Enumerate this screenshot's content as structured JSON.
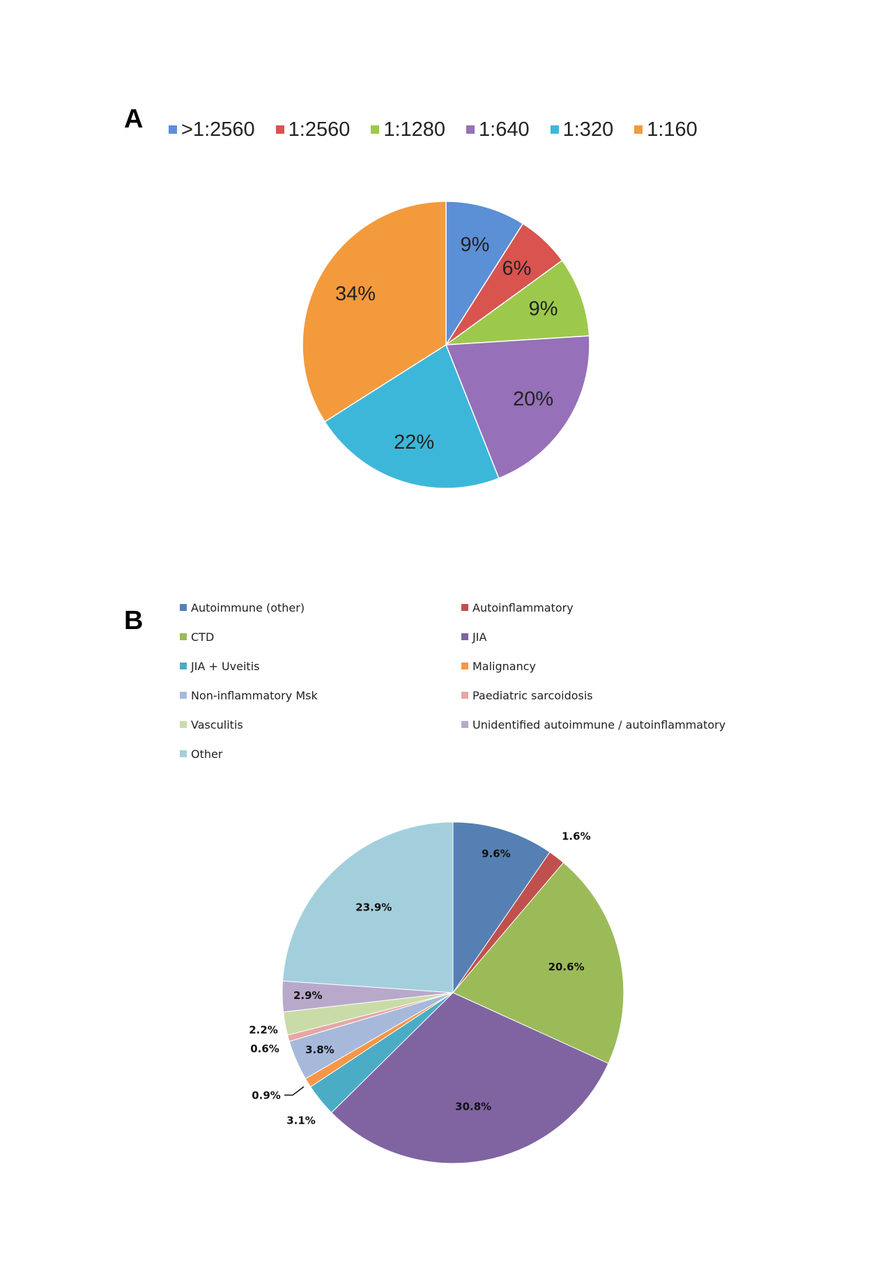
{
  "chart_data": [
    {
      "type": "pie",
      "panel": "A",
      "colors": [
        "#5B8FD6",
        "#D9534F",
        "#9CC94B",
        "#9670B8",
        "#3DB7D9",
        "#F39A3C"
      ],
      "slices": [
        {
          "name": ">1:2560",
          "value": 9,
          "label": "9%"
        },
        {
          "name": "1:2560",
          "value": 6,
          "label": "6%"
        },
        {
          "name": "1:1280",
          "value": 9,
          "label": "9%"
        },
        {
          "name": "1:640",
          "value": 20,
          "label": "20%"
        },
        {
          "name": "1:320",
          "value": 22,
          "label": "22%"
        },
        {
          "name": "1:160",
          "value": 34,
          "label": "34%"
        }
      ]
    },
    {
      "type": "pie",
      "panel": "B",
      "slices": [
        {
          "name": "Autoimmune (other)",
          "value": 9.6,
          "label": "9.6%",
          "color": "#5680B4"
        },
        {
          "name": "Autoinflammatory",
          "value": 1.6,
          "label": "1.6%",
          "color": "#C0504D"
        },
        {
          "name": "CTD",
          "value": 20.6,
          "label": "20.6%",
          "color": "#9BBB59"
        },
        {
          "name": "JIA",
          "value": 30.8,
          "label": "30.8%",
          "color": "#8064A2"
        },
        {
          "name": "JIA + Uveitis",
          "value": 3.1,
          "label": "3.1%",
          "color": "#4BACC6"
        },
        {
          "name": "Malignancy",
          "value": 0.9,
          "label": "0.9%",
          "color": "#F79646"
        },
        {
          "name": "Non-inflammatory Msk",
          "value": 3.8,
          "label": "3.8%",
          "color": "#A6B9DB"
        },
        {
          "name": "Paediatric sarcoidosis",
          "value": 0.6,
          "label": "0.6%",
          "color": "#E6A6A4"
        },
        {
          "name": "Vasculitis",
          "value": 2.2,
          "label": "2.2%",
          "color": "#C9DCA8"
        },
        {
          "name": "Unidentified autoimmune / autoinflammatory",
          "value": 2.9,
          "label": "2.9%",
          "color": "#B8A9CB"
        },
        {
          "name": "Other",
          "value": 23.9,
          "label": "23.9%",
          "color": "#A3CFDC"
        }
      ]
    }
  ],
  "panels": {
    "a": "A",
    "b": "B"
  }
}
